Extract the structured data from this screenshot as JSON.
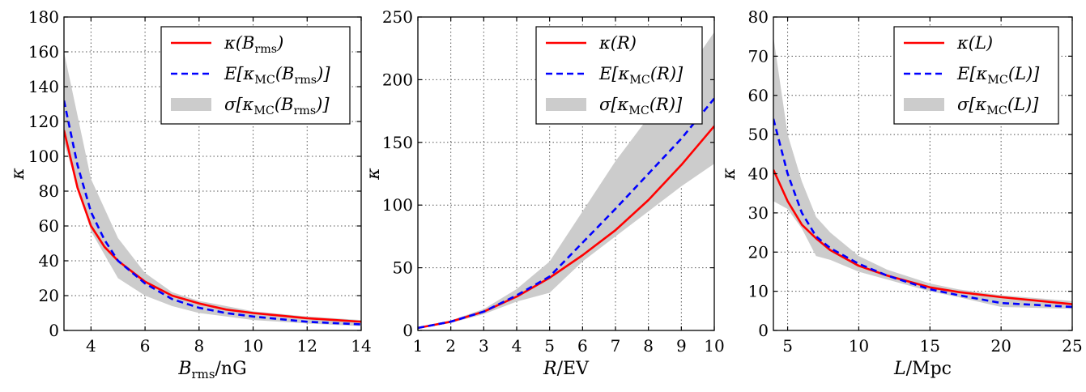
{
  "chart_data": [
    {
      "type": "line",
      "xlabel": "B_rms/nG",
      "ylabel": "κ",
      "xlim": [
        3,
        14
      ],
      "ylim": [
        0,
        180
      ],
      "xticks": [
        4,
        6,
        8,
        10,
        12,
        14
      ],
      "yticks": [
        0,
        20,
        40,
        60,
        80,
        100,
        120,
        140,
        160,
        180
      ],
      "legend_position": "top-right",
      "legend": [
        "κ(B_rms)",
        "E[κ_MC(B_rms)]",
        "σ[κ_MC(B_rms)]"
      ],
      "series": [
        {
          "name": "κ(B_rms)",
          "color": "#ff0000",
          "style": "solid",
          "x": [
            3,
            3.5,
            4,
            4.5,
            5,
            6,
            7,
            8,
            9,
            10,
            11,
            12,
            13,
            14
          ],
          "y": [
            115,
            82,
            60,
            48,
            40,
            28,
            20,
            15.5,
            12,
            10,
            8.5,
            7,
            6,
            5
          ]
        },
        {
          "name": "E[κ_MC(B_rms)]",
          "color": "#0000ff",
          "style": "dashed",
          "x": [
            3,
            3.5,
            4,
            4.5,
            5,
            6,
            7,
            8,
            9,
            10,
            11,
            12,
            13,
            14
          ],
          "y": [
            132,
            95,
            68,
            52,
            40,
            27,
            18,
            13,
            10,
            8,
            6.5,
            5,
            4.2,
            3.5
          ]
        },
        {
          "name": "σ[κ_MC(B_rms)]",
          "color": "#cccccc",
          "style": "band",
          "x": [
            3,
            4,
            5,
            6,
            7,
            8,
            9,
            10,
            12,
            14
          ],
          "upper": [
            160,
            87,
            53,
            33,
            22,
            17,
            14,
            11,
            8,
            6
          ],
          "lower": [
            108,
            57,
            30,
            20,
            14,
            10,
            8,
            6,
            4,
            2.5
          ]
        }
      ]
    },
    {
      "type": "line",
      "xlabel": "R/EV",
      "ylabel": "κ",
      "xlim": [
        1,
        10
      ],
      "ylim": [
        0,
        250
      ],
      "xticks": [
        1,
        2,
        3,
        4,
        5,
        6,
        7,
        8,
        9,
        10
      ],
      "yticks": [
        0,
        50,
        100,
        150,
        200,
        250
      ],
      "legend_position": "top-right",
      "legend": [
        "κ(R)",
        "E[κ_MC(R)]",
        "σ[κ_MC(R)]"
      ],
      "series": [
        {
          "name": "κ(R)",
          "color": "#ff0000",
          "style": "solid",
          "x": [
            1,
            2,
            3,
            4,
            5,
            6,
            7,
            8,
            9,
            10
          ],
          "y": [
            2,
            7,
            15,
            27,
            42,
            60,
            80,
            104,
            132,
            163
          ]
        },
        {
          "name": "E[κ_MC(R)]",
          "color": "#0000ff",
          "style": "dashed",
          "x": [
            1,
            2,
            3,
            4,
            5,
            6,
            7,
            8,
            9,
            10
          ],
          "y": [
            2,
            7,
            15,
            28,
            43,
            70,
            97,
            125,
            153,
            185
          ]
        },
        {
          "name": "σ[κ_MC(R)]",
          "color": "#cccccc",
          "style": "band",
          "x": [
            1,
            2,
            3,
            4,
            5,
            6,
            7,
            8,
            9,
            10
          ],
          "upper": [
            2.5,
            8,
            17,
            33,
            55,
            95,
            135,
            170,
            200,
            238
          ],
          "lower": [
            1.5,
            6,
            13,
            23,
            30,
            55,
            75,
            95,
            115,
            133
          ]
        }
      ]
    },
    {
      "type": "line",
      "xlabel": "L/Mpc",
      "ylabel": "κ",
      "xlim": [
        4,
        25
      ],
      "ylim": [
        0,
        80
      ],
      "xticks": [
        5,
        10,
        15,
        20,
        25
      ],
      "yticks": [
        0,
        10,
        20,
        30,
        40,
        50,
        60,
        70,
        80
      ],
      "legend_position": "top-right",
      "legend": [
        "κ(L)",
        "E[κ_MC(L)]",
        "σ[κ_MC(L)]"
      ],
      "series": [
        {
          "name": "κ(L)",
          "color": "#ff0000",
          "style": "solid",
          "x": [
            4,
            5,
            6,
            7,
            8,
            10,
            12,
            15,
            17,
            20,
            25
          ],
          "y": [
            41,
            33,
            27,
            23.5,
            20.5,
            16.5,
            14,
            11,
            9.8,
            8.5,
            6.7
          ]
        },
        {
          "name": "E[κ_MC(L)]",
          "color": "#0000ff",
          "style": "dashed",
          "x": [
            4,
            5,
            6,
            7,
            8,
            10,
            12,
            15,
            17,
            20,
            25
          ],
          "y": [
            54,
            40,
            30,
            24,
            21,
            17,
            14,
            10.5,
            9,
            7,
            6
          ]
        },
        {
          "name": "σ[κ_MC(L)]",
          "color": "#cccccc",
          "style": "band",
          "x": [
            4,
            5,
            6,
            7,
            8,
            10,
            12,
            15,
            17,
            20,
            25
          ],
          "upper": [
            75,
            50,
            38,
            29,
            25,
            19,
            15.5,
            12,
            10.5,
            9,
            7.5
          ],
          "lower": [
            33,
            31,
            26,
            19,
            18,
            15,
            13,
            10,
            8.5,
            6,
            5.5
          ]
        }
      ]
    }
  ]
}
